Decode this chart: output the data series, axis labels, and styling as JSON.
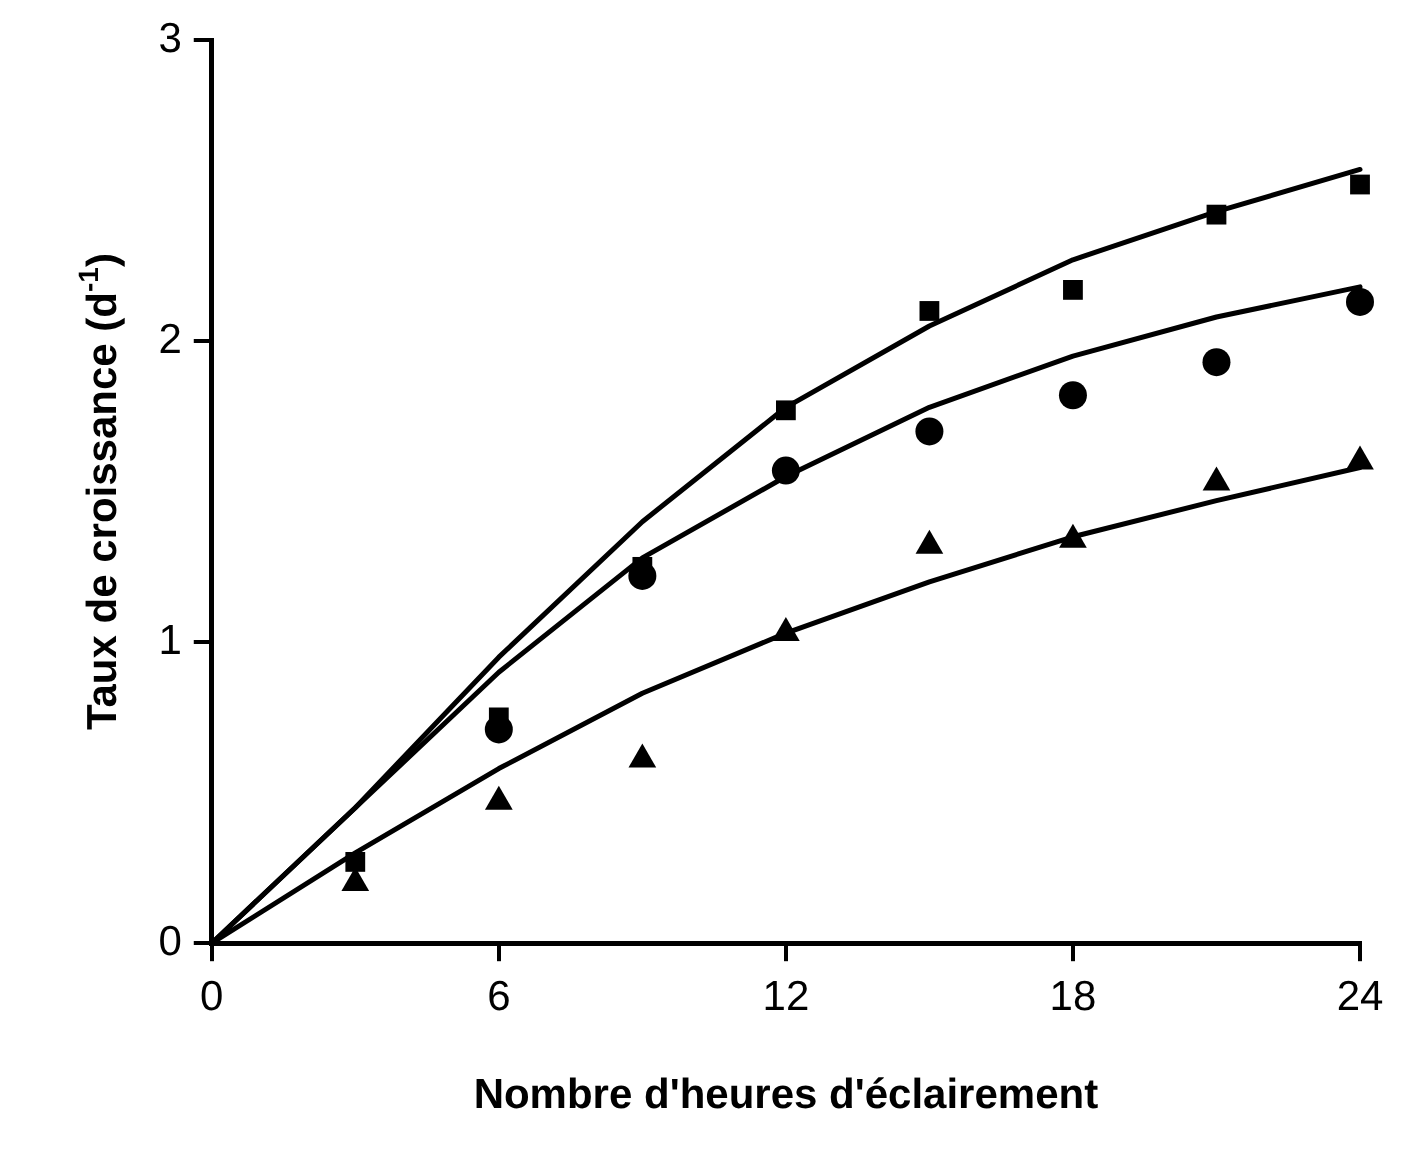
{
  "chart_data": {
    "type": "scatter",
    "xlabel": "Nombre d'heures d'éclairement",
    "ylabel": "Taux de croissance (d$^{-1}$)",
    "xlim": [
      0,
      24
    ],
    "ylim": [
      0,
      3
    ],
    "xticks": [
      0,
      6,
      12,
      18,
      24
    ],
    "yticks": [
      0,
      1,
      2,
      3
    ],
    "grid": false,
    "legend": false,
    "series": [
      {
        "marker": "square",
        "color": "#000000",
        "x": [
          3,
          6,
          9,
          12,
          15,
          18,
          21,
          24
        ],
        "values": [
          0.27,
          0.75,
          1.25,
          1.77,
          2.1,
          2.17,
          2.42,
          2.52
        ]
      },
      {
        "marker": "circle",
        "color": "#000000",
        "x": [
          6,
          9,
          12,
          15,
          18,
          21,
          24
        ],
        "values": [
          0.71,
          1.22,
          1.57,
          1.7,
          1.82,
          1.93,
          2.13
        ]
      },
      {
        "marker": "triangle",
        "color": "#000000",
        "x": [
          3,
          6,
          9,
          12,
          15,
          18,
          21,
          24
        ],
        "values": [
          0.2,
          0.47,
          0.61,
          1.03,
          1.32,
          1.34,
          1.53,
          1.6
        ]
      },
      {
        "type": "line",
        "marker": "none",
        "line_style": "solid",
        "color": "#000000",
        "x": [
          0,
          3,
          6,
          9,
          12,
          15,
          18,
          21,
          24
        ],
        "values": [
          0,
          0.45,
          0.95,
          1.4,
          1.78,
          2.05,
          2.27,
          2.43,
          2.57
        ]
      },
      {
        "type": "line",
        "marker": "none",
        "line_style": "solid",
        "color": "#000000",
        "x": [
          0,
          3,
          6,
          9,
          12,
          15,
          18,
          21,
          24
        ],
        "values": [
          0,
          0.45,
          0.9,
          1.28,
          1.55,
          1.78,
          1.95,
          2.08,
          2.18
        ]
      },
      {
        "type": "line",
        "marker": "none",
        "line_style": "solid",
        "color": "#000000",
        "x": [
          0,
          3,
          6,
          9,
          12,
          15,
          18,
          21,
          24
        ],
        "values": [
          0,
          0.3,
          0.58,
          0.83,
          1.03,
          1.2,
          1.35,
          1.47,
          1.58
        ]
      }
    ]
  }
}
